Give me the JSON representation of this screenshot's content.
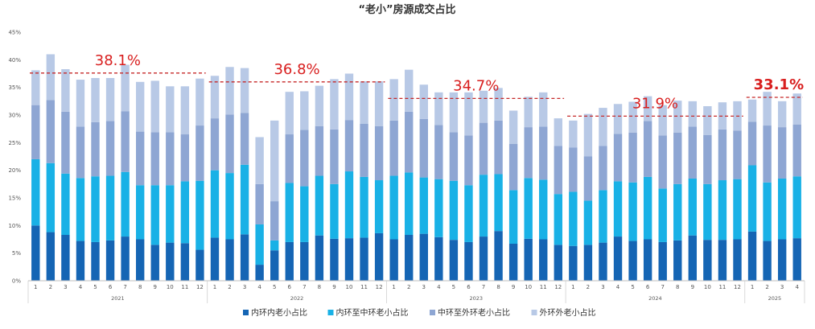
{
  "chart_data": {
    "type": "bar",
    "stacked": true,
    "title": "“老小”房源成交占比",
    "y_ticks": [
      "0%",
      "5%",
      "10%",
      "15%",
      "20%",
      "25%",
      "30%",
      "35%",
      "40%",
      "45%"
    ],
    "ylim": [
      0,
      45
    ],
    "grid": false,
    "legend_position": "bottom",
    "categories": [
      "1",
      "2",
      "3",
      "4",
      "5",
      "6",
      "7",
      "8",
      "9",
      "10",
      "11",
      "12",
      "1",
      "2",
      "3",
      "4",
      "5",
      "6",
      "7",
      "8",
      "9",
      "10",
      "11",
      "12",
      "1",
      "2",
      "3",
      "4",
      "5",
      "6",
      "7",
      "8",
      "9",
      "10",
      "11",
      "12",
      "1",
      "2",
      "3",
      "4",
      "5",
      "6",
      "7",
      "8",
      "9",
      "10",
      "11",
      "12",
      "1",
      "2",
      "3",
      "4"
    ],
    "year_groups": [
      {
        "label": "2021",
        "start": 0,
        "end": 11
      },
      {
        "label": "2022",
        "start": 12,
        "end": 23
      },
      {
        "label": "2023",
        "start": 24,
        "end": 35
      },
      {
        "label": "2024",
        "start": 36,
        "end": 47
      },
      {
        "label": "2025",
        "start": 48,
        "end": 51
      }
    ],
    "series": [
      {
        "name": "内环内老小占比",
        "color": "#1565b4",
        "values": [
          10.0,
          8.8,
          8.3,
          7.2,
          7.0,
          7.3,
          8.0,
          7.5,
          6.5,
          6.9,
          6.8,
          5.6,
          7.8,
          7.5,
          8.4,
          2.9,
          5.5,
          7.0,
          7.0,
          8.2,
          7.6,
          7.7,
          7.8,
          8.6,
          7.5,
          8.3,
          8.5,
          7.9,
          7.4,
          7.0,
          8.0,
          9.0,
          6.7,
          7.6,
          7.5,
          6.5,
          6.3,
          6.5,
          6.9,
          8.0,
          7.2,
          7.5,
          7.0,
          7.3,
          8.2,
          7.4,
          7.4,
          7.5,
          8.9,
          7.2,
          7.5,
          7.7
        ]
      },
      {
        "name": "内环至中环老小占比",
        "color": "#19b1e6",
        "values": [
          12.0,
          12.5,
          11.1,
          11.4,
          11.9,
          11.7,
          11.7,
          9.8,
          10.8,
          10.4,
          11.2,
          12.5,
          12.2,
          12.0,
          12.6,
          7.3,
          1.8,
          10.7,
          10.1,
          10.8,
          9.9,
          12.1,
          11.0,
          9.6,
          11.5,
          11.3,
          10.2,
          10.5,
          10.7,
          10.3,
          11.2,
          10.3,
          9.7,
          11.0,
          10.8,
          9.2,
          9.8,
          8.0,
          9.5,
          10.0,
          10.6,
          11.3,
          9.7,
          10.2,
          10.3,
          10.1,
          10.8,
          10.9,
          12.0,
          10.6,
          11.0,
          11.2
        ]
      },
      {
        "name": "中环至外环老小占比",
        "color": "#8ea6d3",
        "values": [
          9.8,
          11.4,
          11.2,
          9.3,
          9.8,
          9.9,
          11.0,
          9.7,
          9.6,
          9.6,
          8.5,
          10.0,
          9.4,
          10.6,
          9.4,
          7.3,
          7.1,
          8.8,
          10.2,
          9.0,
          9.9,
          9.3,
          9.6,
          9.8,
          10.0,
          11.0,
          10.6,
          9.8,
          8.8,
          9.0,
          9.4,
          9.7,
          8.4,
          9.2,
          9.6,
          8.7,
          8.0,
          8.0,
          8.0,
          8.6,
          9.0,
          10.1,
          9.6,
          9.3,
          9.4,
          8.9,
          9.2,
          8.8,
          7.9,
          10.3,
          9.3,
          9.4
        ]
      },
      {
        "name": "外环外老小占比",
        "color": "#b8c9e6",
        "values": [
          6.3,
          8.3,
          7.7,
          8.5,
          8.0,
          7.8,
          8.4,
          9.0,
          9.3,
          8.3,
          8.7,
          8.5,
          7.7,
          8.6,
          8.1,
          8.5,
          14.6,
          7.7,
          7.0,
          7.3,
          9.1,
          8.4,
          7.7,
          8.1,
          7.5,
          7.6,
          6.2,
          5.9,
          7.2,
          7.8,
          5.8,
          5.9,
          6.0,
          5.5,
          6.2,
          5.0,
          4.9,
          7.7,
          6.9,
          5.4,
          5.6,
          4.5,
          5.5,
          5.8,
          4.6,
          5.2,
          4.9,
          5.3,
          4.0,
          6.1,
          4.7,
          5.6
        ]
      }
    ],
    "annotations": [
      {
        "text": "38.1%",
        "bold": false,
        "line_start": 0,
        "line_end": 12,
        "line_value": 37.6
      },
      {
        "text": "36.8%",
        "bold": false,
        "line_start": 12,
        "line_end": 24,
        "line_value": 36.0
      },
      {
        "text": "34.7%",
        "bold": false,
        "line_start": 24,
        "line_end": 36,
        "line_value": 33.0
      },
      {
        "text": "31.9%",
        "bold": false,
        "line_start": 36,
        "line_end": 48,
        "line_value": 29.8
      },
      {
        "text": "33.1%",
        "bold": true,
        "line_start": 48,
        "line_end": 52,
        "line_value": 33.2
      }
    ]
  }
}
